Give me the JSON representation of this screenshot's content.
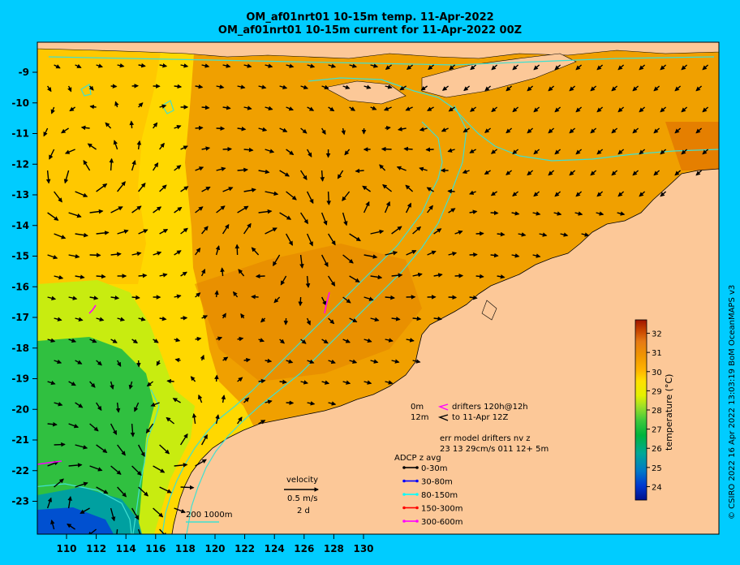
{
  "title_line1": "OM_af01nrt01 10-15m temp. 11-Apr-2022",
  "title_line2": "OM_af01nrt01 10-15m current for 11-Apr-2022 00Z",
  "credit": "© CSIRO 2022  16 Apr 2022 13:03:19 BoM OceanMAPS v3",
  "axes": {
    "x_ticks": [
      "110",
      "112",
      "114",
      "116",
      "118",
      "120",
      "122",
      "124",
      "126",
      "128",
      "130"
    ],
    "y_ticks": [
      "-9",
      "-10",
      "-11",
      "-12",
      "-13",
      "-14",
      "-15",
      "-16",
      "-17",
      "-18",
      "-19",
      "-20",
      "-21",
      "-22",
      "-23"
    ]
  },
  "colorbar": {
    "label": "temperature (°C)",
    "ticks": [
      "32",
      "31",
      "30",
      "29",
      "28",
      "27",
      "26",
      "25",
      "24"
    ],
    "min": 23.3,
    "max": 32.7,
    "colors": [
      "#00118c",
      "#0038d0",
      "#0078c8",
      "#00a896",
      "#00b43c",
      "#3cc83c",
      "#a0e028",
      "#e4f000",
      "#ffe000",
      "#ffb400",
      "#f09600",
      "#e67a14",
      "#c84600",
      "#a01400"
    ]
  },
  "legend": {
    "drifter_0m": "0m",
    "drifter_12m": "12m",
    "drifter_0m_label": "drifters 120h@12h",
    "drifter_12m_label": "to 11-Apr 12Z",
    "model_line1": "err model drifters nv z",
    "model_line2": "23 13 29cm/s 011 12+ 5m",
    "adcp_title": "ADCP z avg",
    "adcp": [
      {
        "label": "0-30m",
        "color": "#000000"
      },
      {
        "label": "30-80m",
        "color": "#0000ff"
      },
      {
        "label": "80-150m",
        "color": "#00ffff"
      },
      {
        "label": "150-300m",
        "color": "#ff0000"
      },
      {
        "label": "300-600m",
        "color": "#ff00ff"
      }
    ],
    "velocity_title": "velocity",
    "velocity_value": "0.5 m/s",
    "velocity_days": "2 d",
    "isobaths": "200  1000m"
  },
  "colors": {
    "land": "#fcc898",
    "contour": "#40e0d0",
    "frame": "#00ccff"
  }
}
